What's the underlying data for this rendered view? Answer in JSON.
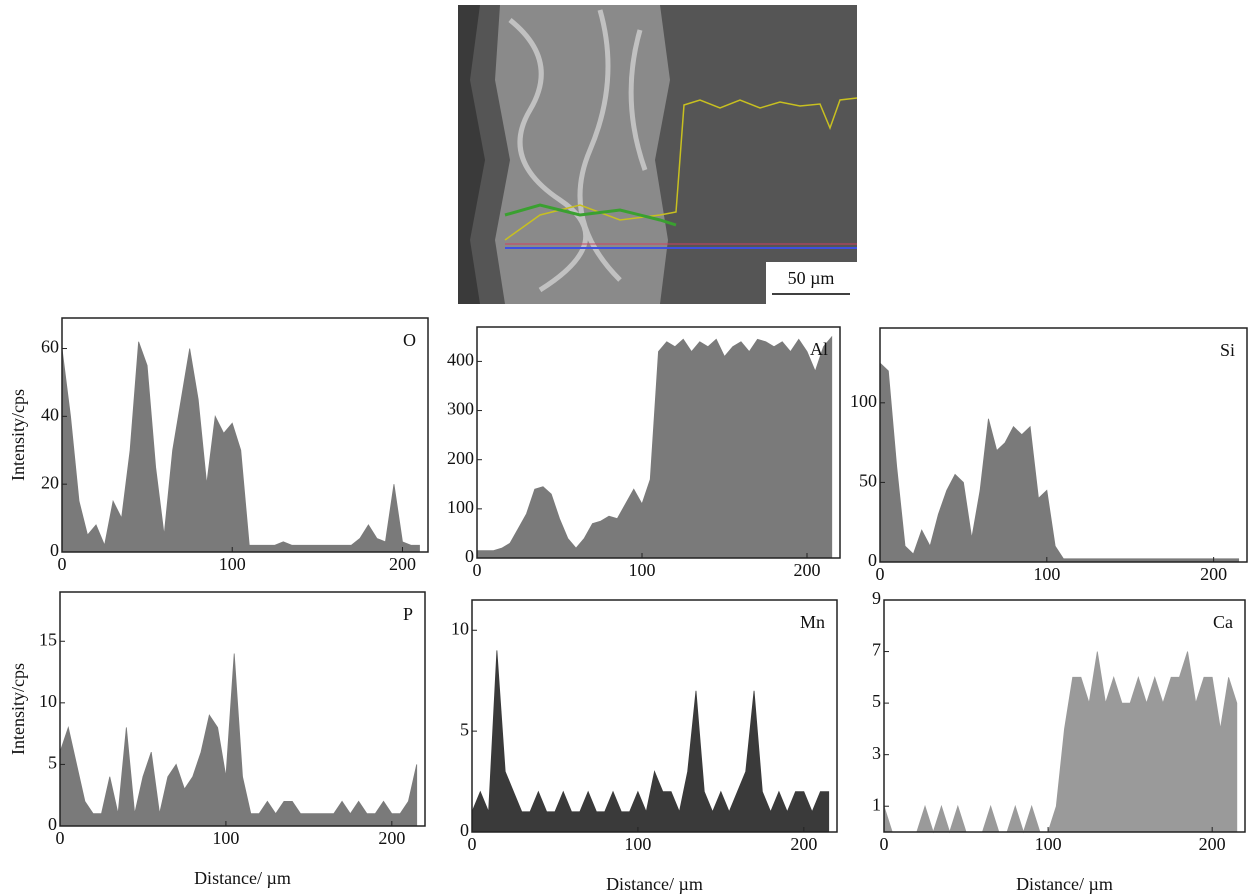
{
  "image": {
    "scale_bar": "50 µm"
  },
  "chart_data": [
    {
      "type": "area",
      "label": "O",
      "y_label": "Intensity/cps",
      "color": "#7a7a7a",
      "x": [
        0,
        5,
        10,
        15,
        20,
        25,
        30,
        35,
        40,
        45,
        50,
        55,
        60,
        65,
        70,
        75,
        80,
        85,
        90,
        95,
        100,
        105,
        110,
        115,
        120,
        125,
        130,
        135,
        140,
        145,
        150,
        155,
        160,
        165,
        170,
        175,
        180,
        185,
        190,
        195,
        200,
        205,
        210
      ],
      "values": [
        60,
        40,
        15,
        5,
        8,
        2,
        15,
        10,
        30,
        62,
        55,
        25,
        5,
        30,
        45,
        60,
        45,
        20,
        40,
        35,
        38,
        30,
        2,
        2,
        2,
        2,
        3,
        2,
        2,
        2,
        2,
        2,
        2,
        2,
        2,
        4,
        8,
        4,
        3,
        20,
        3,
        2,
        2
      ],
      "xlim": [
        0,
        215
      ],
      "xticks": [
        0,
        100,
        200
      ],
      "ylim": [
        0,
        69
      ],
      "yticks": [
        0,
        20,
        40,
        60
      ]
    },
    {
      "type": "area",
      "label": "Al",
      "color": "#7a7a7a",
      "x": [
        0,
        5,
        10,
        15,
        20,
        25,
        30,
        35,
        40,
        45,
        50,
        55,
        60,
        65,
        70,
        75,
        80,
        85,
        90,
        95,
        100,
        105,
        110,
        115,
        120,
        125,
        130,
        135,
        140,
        145,
        150,
        155,
        160,
        165,
        170,
        175,
        180,
        185,
        190,
        195,
        200,
        205,
        210,
        215
      ],
      "values": [
        15,
        15,
        15,
        20,
        30,
        60,
        90,
        140,
        145,
        130,
        80,
        40,
        20,
        40,
        70,
        75,
        85,
        80,
        110,
        140,
        110,
        160,
        420,
        440,
        430,
        445,
        420,
        440,
        430,
        445,
        410,
        430,
        440,
        420,
        445,
        440,
        430,
        440,
        420,
        445,
        420,
        380,
        430,
        450
      ],
      "xlim": [
        0,
        220
      ],
      "xticks": [
        0,
        100,
        200
      ],
      "ylim": [
        0,
        470
      ],
      "yticks": [
        0,
        100,
        200,
        300,
        400
      ]
    },
    {
      "type": "area",
      "label": "Si",
      "color": "#7a7a7a",
      "x": [
        0,
        5,
        10,
        15,
        20,
        25,
        30,
        35,
        40,
        45,
        50,
        55,
        60,
        65,
        70,
        75,
        80,
        85,
        90,
        95,
        100,
        105,
        110,
        115,
        120,
        125,
        130,
        135,
        140,
        145,
        150,
        155,
        160,
        165,
        170,
        175,
        180,
        185,
        190,
        195,
        200,
        205,
        210,
        215
      ],
      "values": [
        125,
        120,
        60,
        10,
        5,
        20,
        10,
        30,
        45,
        55,
        50,
        15,
        45,
        90,
        70,
        75,
        85,
        80,
        85,
        40,
        45,
        10,
        2,
        2,
        2,
        2,
        2,
        2,
        2,
        2,
        2,
        2,
        2,
        2,
        2,
        2,
        2,
        2,
        2,
        2,
        2,
        2,
        2,
        2
      ],
      "xlim": [
        0,
        220
      ],
      "xticks": [
        0,
        100,
        200
      ],
      "ylim": [
        0,
        147
      ],
      "yticks": [
        0,
        50,
        100
      ]
    },
    {
      "type": "area",
      "label": "P",
      "y_label": "Intensity/cps",
      "x_label": "Distance/ µm",
      "color": "#7a7a7a",
      "x": [
        0,
        5,
        10,
        15,
        20,
        25,
        30,
        35,
        40,
        45,
        50,
        55,
        60,
        65,
        70,
        75,
        80,
        85,
        90,
        95,
        100,
        105,
        110,
        115,
        120,
        125,
        130,
        135,
        140,
        145,
        150,
        155,
        160,
        165,
        170,
        175,
        180,
        185,
        190,
        195,
        200,
        205,
        210,
        215
      ],
      "values": [
        6,
        8,
        5,
        2,
        1,
        1,
        4,
        1,
        8,
        1,
        4,
        6,
        1,
        4,
        5,
        3,
        4,
        6,
        9,
        8,
        4,
        14,
        4,
        1,
        1,
        2,
        1,
        2,
        2,
        1,
        1,
        1,
        1,
        1,
        2,
        1,
        2,
        1,
        1,
        2,
        1,
        1,
        2,
        5
      ],
      "xlim": [
        0,
        220
      ],
      "xticks": [
        0,
        100,
        200
      ],
      "ylim": [
        0,
        19
      ],
      "yticks": [
        0,
        5,
        10,
        15
      ]
    },
    {
      "type": "area",
      "label": "Mn",
      "x_label": "Distance/ µm",
      "color": "#3a3a3a",
      "x": [
        0,
        5,
        10,
        15,
        20,
        25,
        30,
        35,
        40,
        45,
        50,
        55,
        60,
        65,
        70,
        75,
        80,
        85,
        90,
        95,
        100,
        105,
        110,
        115,
        120,
        125,
        130,
        135,
        140,
        145,
        150,
        155,
        160,
        165,
        170,
        175,
        180,
        185,
        190,
        195,
        200,
        205,
        210,
        215
      ],
      "values": [
        1,
        2,
        1,
        9,
        3,
        2,
        1,
        1,
        2,
        1,
        1,
        2,
        1,
        1,
        2,
        1,
        1,
        2,
        1,
        1,
        2,
        1,
        3,
        2,
        2,
        1,
        3,
        7,
        2,
        1,
        2,
        1,
        2,
        3,
        7,
        2,
        1,
        2,
        1,
        2,
        2,
        1,
        2,
        2
      ],
      "xlim": [
        0,
        220
      ],
      "xticks": [
        0,
        100,
        200
      ],
      "ylim": [
        0,
        11.5
      ],
      "yticks": [
        0,
        5,
        10
      ]
    },
    {
      "type": "area",
      "label": "Ca",
      "x_label": "Distance/ µm",
      "color": "#9a9a9a",
      "x": [
        0,
        5,
        10,
        15,
        20,
        25,
        30,
        35,
        40,
        45,
        50,
        55,
        60,
        65,
        70,
        75,
        80,
        85,
        90,
        95,
        100,
        105,
        110,
        115,
        120,
        125,
        130,
        135,
        140,
        145,
        150,
        155,
        160,
        165,
        170,
        175,
        180,
        185,
        190,
        195,
        200,
        205,
        210,
        215
      ],
      "values": [
        1,
        0,
        0,
        0,
        0,
        1,
        0,
        1,
        0,
        1,
        0,
        0,
        0,
        1,
        0,
        0,
        1,
        0,
        1,
        0,
        0,
        1,
        4,
        6,
        6,
        5,
        7,
        5,
        6,
        5,
        5,
        6,
        5,
        6,
        5,
        6,
        6,
        7,
        5,
        6,
        6,
        4,
        6,
        5
      ],
      "xlim": [
        0,
        220
      ],
      "xticks": [
        0,
        100,
        200
      ],
      "ylim": [
        0,
        9
      ],
      "yticks": [
        1,
        3,
        5,
        7,
        9
      ]
    }
  ]
}
